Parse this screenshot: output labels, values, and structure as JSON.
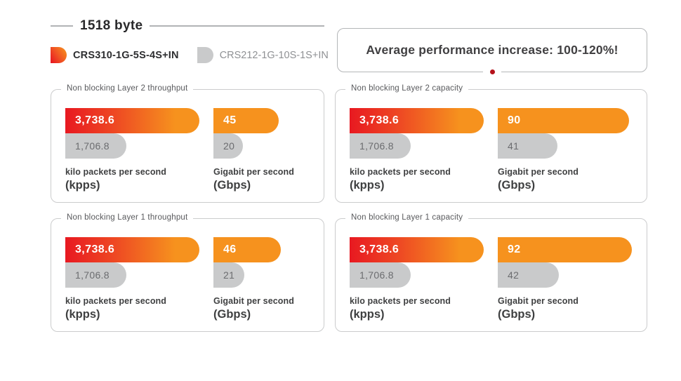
{
  "header": {
    "title": "1518 byte"
  },
  "legend": {
    "series": [
      {
        "name": "CRS310-1G-5S-4S+IN",
        "color": "#e81921 to #f6921e gradient"
      },
      {
        "name": "CRS212-1G-10S-1S+IN",
        "color": "#c9cacb"
      }
    ]
  },
  "banner": {
    "text": "Average performance increase: 100-120%!",
    "dot_color": "#b5121b"
  },
  "colors": {
    "brand_red": "#e81921",
    "brand_orange": "#f6921e",
    "gray_bar": "#c9cacb",
    "text_dark": "#414042",
    "panel_border": "#cbcccd"
  },
  "chart_data": [
    {
      "type": "bar",
      "title": "Non blocking Layer 2 throughput",
      "series_names": [
        "CRS310-1G-5S-4S+IN",
        "CRS212-1G-10S-1S+IN"
      ],
      "groups": [
        {
          "unit_name": "kilo packets per second",
          "unit_abbr": "(kpps)",
          "max": 3738.6,
          "bars": [
            {
              "label": "3,738.6",
              "value": 3738.6
            },
            {
              "label": "1,706.8",
              "value": 1706.8
            }
          ]
        },
        {
          "unit_name": "Gigabit per second",
          "unit_abbr": "(Gbps)",
          "max": 92,
          "bars": [
            {
              "label": "45",
              "value": 45
            },
            {
              "label": "20",
              "value": 20
            }
          ]
        }
      ]
    },
    {
      "type": "bar",
      "title": "Non blocking Layer 2 capacity",
      "series_names": [
        "CRS310-1G-5S-4S+IN",
        "CRS212-1G-10S-1S+IN"
      ],
      "groups": [
        {
          "unit_name": "kilo packets per second",
          "unit_abbr": "(kpps)",
          "max": 3738.6,
          "bars": [
            {
              "label": "3,738.6",
              "value": 3738.6
            },
            {
              "label": "1,706.8",
              "value": 1706.8
            }
          ]
        },
        {
          "unit_name": "Gigabit per second",
          "unit_abbr": "(Gbps)",
          "max": 92,
          "bars": [
            {
              "label": "90",
              "value": 90
            },
            {
              "label": "41",
              "value": 41
            }
          ]
        }
      ]
    },
    {
      "type": "bar",
      "title": "Non blocking Layer 1 throughput",
      "series_names": [
        "CRS310-1G-5S-4S+IN",
        "CRS212-1G-10S-1S+IN"
      ],
      "groups": [
        {
          "unit_name": "kilo packets per second",
          "unit_abbr": "(kpps)",
          "max": 3738.6,
          "bars": [
            {
              "label": "3,738.6",
              "value": 3738.6
            },
            {
              "label": "1,706.8",
              "value": 1706.8
            }
          ]
        },
        {
          "unit_name": "Gigabit per second",
          "unit_abbr": "(Gbps)",
          "max": 92,
          "bars": [
            {
              "label": "46",
              "value": 46
            },
            {
              "label": "21",
              "value": 21
            }
          ]
        }
      ]
    },
    {
      "type": "bar",
      "title": "Non blocking Layer 1 capacity",
      "series_names": [
        "CRS310-1G-5S-4S+IN",
        "CRS212-1G-10S-1S+IN"
      ],
      "groups": [
        {
          "unit_name": "kilo packets per second",
          "unit_abbr": "(kpps)",
          "max": 3738.6,
          "bars": [
            {
              "label": "3,738.6",
              "value": 3738.6
            },
            {
              "label": "1,706.8",
              "value": 1706.8
            }
          ]
        },
        {
          "unit_name": "Gigabit per second",
          "unit_abbr": "(Gbps)",
          "max": 92,
          "bars": [
            {
              "label": "92",
              "value": 92
            },
            {
              "label": "42",
              "value": 42
            }
          ]
        }
      ]
    }
  ]
}
